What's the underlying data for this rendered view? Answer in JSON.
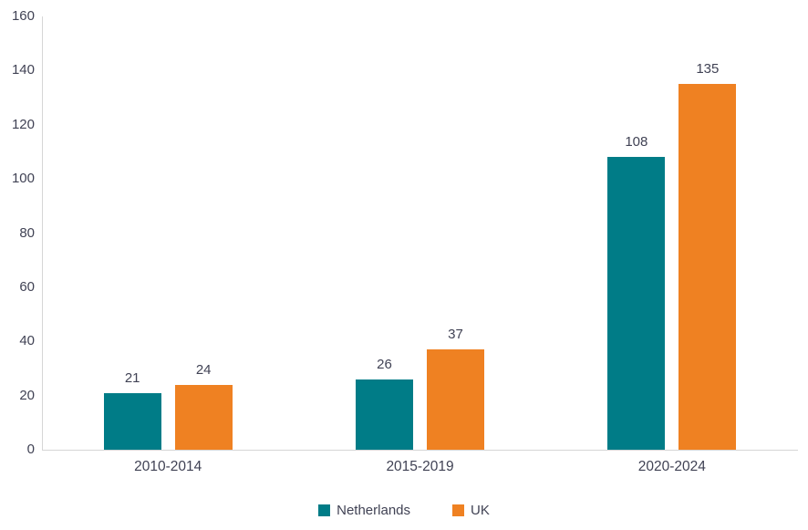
{
  "chart_data": {
    "type": "bar",
    "categories": [
      "2010-2014",
      "2015-2019",
      "2020-2024"
    ],
    "series": [
      {
        "name": "Netherlands",
        "color": "#007C87",
        "values": [
          21,
          26,
          108
        ]
      },
      {
        "name": "UK",
        "color": "#EF8122",
        "values": [
          24,
          37,
          135
        ]
      }
    ],
    "title": "",
    "xlabel": "",
    "ylabel": "",
    "ylim": [
      0,
      160
    ],
    "ytick_step": 20,
    "ytick_labels": [
      "0",
      "20",
      "40",
      "60",
      "80",
      "100",
      "120",
      "140",
      "160"
    ],
    "grid": false,
    "data_labels": true,
    "legend_position": "bottom"
  },
  "legend": {
    "items": [
      {
        "label": "Netherlands",
        "color": "#007C87"
      },
      {
        "label": "UK",
        "color": "#EF8122"
      }
    ]
  },
  "colors": {
    "text": "#404254",
    "axis_line": "#d6d6d6",
    "background": "#ffffff"
  }
}
